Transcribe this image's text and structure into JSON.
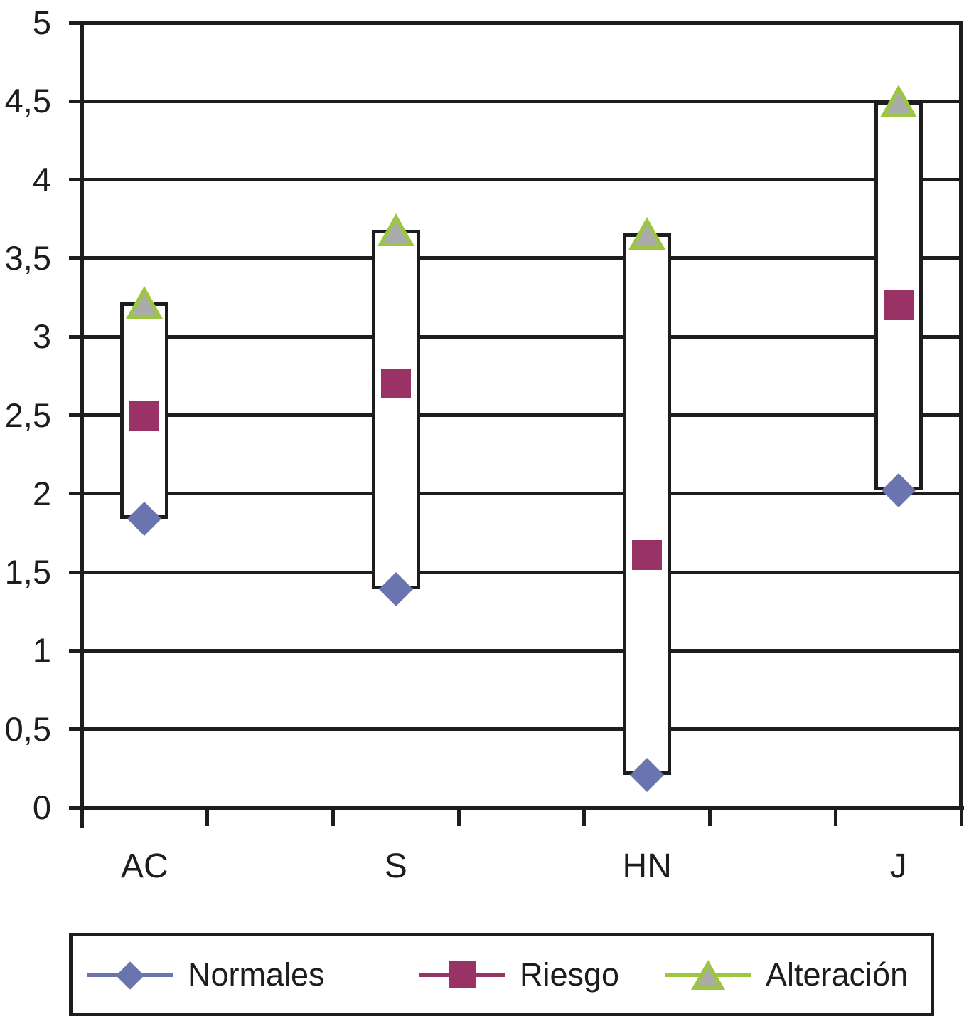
{
  "chart_data": {
    "type": "line",
    "subtype": "high-low-close stock chart with high-low bars and markers",
    "title": "",
    "xlabel": "",
    "ylabel": "",
    "categories": [
      "AC",
      "S",
      "HN",
      "J"
    ],
    "series": [
      {
        "name": "Normales",
        "marker": "diamond",
        "color": "#6A74AE",
        "role": "low",
        "values": [
          1.84,
          1.39,
          0.21,
          2.02
        ]
      },
      {
        "name": "Riesgo",
        "marker": "square",
        "color": "#993366",
        "role": "mid",
        "values": [
          2.5,
          2.7,
          1.61,
          3.2
        ]
      },
      {
        "name": "Alteración",
        "marker": "triangle",
        "color": "#9DC544",
        "marker_fill": "#ABABAB",
        "role": "high",
        "values": [
          3.22,
          3.68,
          3.66,
          4.5
        ]
      }
    ],
    "ylim": [
      0,
      5
    ],
    "ytick_step": 0.5,
    "ytick_labels": [
      "0",
      "0,5",
      "1",
      "1,5",
      "2",
      "2,5",
      "3",
      "3,5",
      "4",
      "4,5",
      "5"
    ],
    "decimal_separator": ",",
    "grid": true,
    "gridline_color": "#1D1D1D",
    "axis_color": "#1D1D1D",
    "hilo_bar_fill": "#FFFFFF",
    "hilo_bar_border": "#1D1D1D",
    "n_category_slots": 7,
    "category_slot_index": [
      1,
      3,
      5,
      7
    ],
    "legend": {
      "position": "bottom",
      "bordered": true,
      "items": [
        "Normales",
        "Riesgo",
        "Alteración"
      ]
    }
  }
}
